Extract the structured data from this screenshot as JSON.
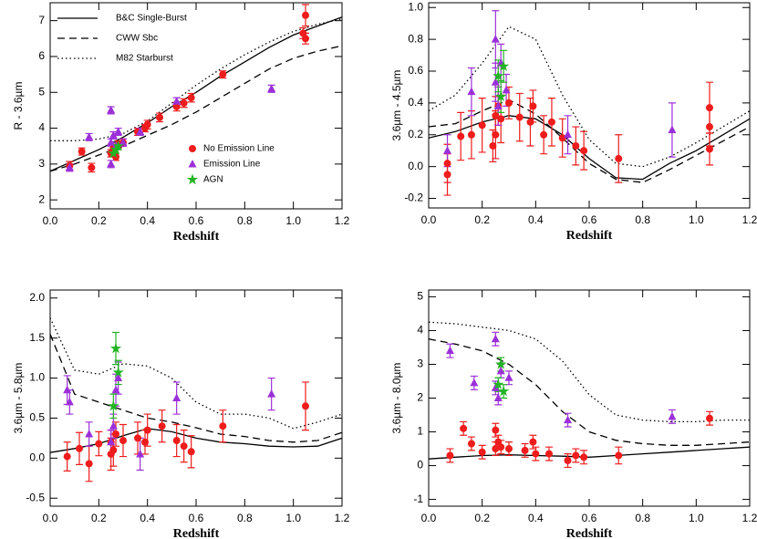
{
  "chart_data": [
    {
      "type": "scatter",
      "xlabel": "Redshift",
      "ylabel": "R - 3.6µm",
      "xlim": [
        0,
        1.2
      ],
      "ylim": [
        1.75,
        7.5
      ],
      "xticks": [
        {
          "value": 0,
          "label": "0.0"
        },
        0.2,
        0.4,
        0.6,
        0.8,
        {
          "value": 1,
          "label": "1.0"
        },
        1.2
      ],
      "yticks": [
        2,
        3,
        4,
        5,
        6,
        7
      ],
      "lines": [
        {
          "name": "B&C Single-Burst",
          "style": "solid",
          "color": "#000000",
          "x": [
            0,
            0.1,
            0.2,
            0.3,
            0.4,
            0.5,
            0.6,
            0.7,
            0.8,
            0.9,
            1,
            1.1,
            1.2
          ],
          "values": [
            2.8,
            3.1,
            3.4,
            3.75,
            4.15,
            4.6,
            5.0,
            5.45,
            5.85,
            6.25,
            6.6,
            6.85,
            7.1
          ]
        },
        {
          "name": "CWW Sbc",
          "style": "dashed",
          "color": "#000000",
          "x": [
            0,
            0.1,
            0.2,
            0.3,
            0.4,
            0.5,
            0.6,
            0.7,
            0.8,
            0.9,
            1,
            1.1,
            1.2
          ],
          "values": [
            2.8,
            3.0,
            3.25,
            3.5,
            3.8,
            4.1,
            4.45,
            4.85,
            5.25,
            5.65,
            5.95,
            6.15,
            6.3
          ]
        },
        {
          "name": "M82 Starburst",
          "style": "dotted",
          "color": "#000000",
          "x": [
            0,
            0.1,
            0.2,
            0.3,
            0.4,
            0.5,
            0.6,
            0.7,
            0.8,
            0.9,
            1,
            1.1,
            1.2
          ],
          "values": [
            3.65,
            3.65,
            3.7,
            3.85,
            4.2,
            4.7,
            5.2,
            5.65,
            6.05,
            6.4,
            6.7,
            6.9,
            7.05
          ]
        }
      ],
      "series": [
        {
          "name": "No Emission Line",
          "marker": "circle",
          "color": "#ee1c1c",
          "x": [
            0.08,
            0.13,
            0.17,
            0.25,
            0.26,
            0.27,
            0.28,
            0.3,
            0.36,
            0.39,
            0.4,
            0.45,
            0.52,
            0.55,
            0.58,
            0.71,
            1.04,
            1.05,
            1.05
          ],
          "values": [
            2.95,
            3.35,
            2.9,
            3.3,
            3.45,
            3.2,
            3.55,
            3.6,
            3.9,
            4.0,
            4.1,
            4.3,
            4.6,
            4.7,
            4.85,
            5.5,
            6.65,
            6.5,
            7.15
          ],
          "errors": [
            0.12,
            0.1,
            0.12,
            0.1,
            0.1,
            0.1,
            0.1,
            0.1,
            0.1,
            0.1,
            0.12,
            0.12,
            0.12,
            0.12,
            0.12,
            0.1,
            0.15,
            0.15,
            0.3
          ]
        },
        {
          "name": "Emission Line",
          "marker": "triangle",
          "color": "#9b30d8",
          "x": [
            0.08,
            0.16,
            0.25,
            0.25,
            0.25,
            0.26,
            0.27,
            0.28,
            0.3,
            0.37,
            0.52,
            0.91
          ],
          "values": [
            2.9,
            3.75,
            4.5,
            3.0,
            3.6,
            3.8,
            3.5,
            3.9,
            3.6,
            3.9,
            4.75,
            5.1
          ],
          "errors": [
            0.1,
            0.1,
            0.1,
            0.1,
            0.1,
            0.1,
            0.1,
            0.1,
            0.1,
            0.1,
            0.1,
            0.1
          ]
        },
        {
          "name": "AGN",
          "marker": "star",
          "color": "#22b422",
          "x": [
            0.26,
            0.27,
            0.28
          ],
          "values": [
            3.3,
            3.4,
            3.5
          ],
          "errors": [
            0.1,
            0.1,
            0.1
          ]
        }
      ]
    },
    {
      "type": "scatter",
      "xlabel": "Redshift",
      "ylabel": "3.6µm - 4.5µm",
      "xlim": [
        0,
        1.2
      ],
      "ylim": [
        -0.26,
        1.03
      ],
      "xticks": [
        {
          "value": 0,
          "label": "0.0"
        },
        0.2,
        0.4,
        0.6,
        0.8,
        {
          "value": 1,
          "label": "1.0"
        },
        1.2
      ],
      "yticks": [
        -0.2,
        {
          "value": 0,
          "label": "0.0"
        },
        0.2,
        0.4,
        0.6,
        0.8,
        {
          "value": 1,
          "label": "1.0"
        }
      ],
      "lines": [
        {
          "style": "solid",
          "color": "#000000",
          "x": [
            0,
            0.1,
            0.2,
            0.3,
            0.4,
            0.5,
            0.6,
            0.7,
            0.8,
            0.9,
            1,
            1.1,
            1.2
          ],
          "values": [
            0.18,
            0.22,
            0.28,
            0.32,
            0.3,
            0.2,
            0.05,
            -0.07,
            -0.08,
            0.02,
            0.1,
            0.2,
            0.3
          ]
        },
        {
          "style": "dashed",
          "color": "#000000",
          "x": [
            0,
            0.1,
            0.2,
            0.3,
            0.4,
            0.5,
            0.6,
            0.7,
            0.8,
            0.9,
            1,
            1.1,
            1.2
          ],
          "values": [
            0.25,
            0.27,
            0.35,
            0.42,
            0.33,
            0.18,
            0.02,
            -0.08,
            -0.1,
            -0.02,
            0.07,
            0.16,
            0.25
          ]
        },
        {
          "style": "dotted",
          "color": "#000000",
          "x": [
            0,
            0.1,
            0.2,
            0.3,
            0.4,
            0.5,
            0.6,
            0.7,
            0.8,
            0.9,
            1,
            1.1,
            1.2
          ],
          "values": [
            0.35,
            0.45,
            0.65,
            0.88,
            0.8,
            0.45,
            0.17,
            0.02,
            0.0,
            0.06,
            0.15,
            0.25,
            0.35
          ]
        }
      ],
      "series": [
        {
          "marker": "circle",
          "color": "#ee1c1c",
          "x": [
            0.07,
            0.07,
            0.12,
            0.16,
            0.2,
            0.24,
            0.25,
            0.25,
            0.26,
            0.27,
            0.3,
            0.34,
            0.38,
            0.39,
            0.43,
            0.46,
            0.5,
            0.55,
            0.58,
            0.71,
            1.05,
            1.05,
            1.05
          ],
          "values": [
            -0.05,
            0.02,
            0.19,
            0.2,
            0.26,
            0.13,
            0.2,
            0.32,
            0.38,
            0.3,
            0.4,
            0.31,
            0.28,
            0.38,
            0.2,
            0.28,
            0.18,
            0.13,
            0.1,
            0.05,
            0.37,
            0.25,
            0.11
          ],
          "errors": [
            0.13,
            0.12,
            0.15,
            0.15,
            0.17,
            0.1,
            0.15,
            0.12,
            0.12,
            0.15,
            0.1,
            0.15,
            0.15,
            0.1,
            0.12,
            0.15,
            0.12,
            0.12,
            0.12,
            0.15,
            0.16,
            0.12,
            0.1
          ]
        },
        {
          "marker": "triangle",
          "color": "#9b30d8",
          "x": [
            0.07,
            0.16,
            0.25,
            0.25,
            0.26,
            0.27,
            0.29,
            0.52,
            0.91
          ],
          "values": [
            0.1,
            0.47,
            0.8,
            0.53,
            0.38,
            0.65,
            0.48,
            0.2,
            0.23
          ],
          "errors": [
            0.1,
            0.15,
            0.18,
            0.12,
            0.12,
            0.12,
            0.1,
            0.12,
            0.17
          ]
        },
        {
          "marker": "star",
          "color": "#22b422",
          "x": [
            0.26,
            0.27,
            0.28
          ],
          "values": [
            0.57,
            0.44,
            0.63
          ],
          "errors": [
            0.1,
            0.1,
            0.1
          ]
        }
      ]
    },
    {
      "type": "scatter",
      "xlabel": "Redshift",
      "ylabel": "3.6µm - 5.8µm",
      "xlim": [
        0,
        1.2
      ],
      "ylim": [
        -0.6,
        2.1
      ],
      "xticks": [
        {
          "value": 0,
          "label": "0.0"
        },
        0.2,
        0.4,
        0.6,
        0.8,
        {
          "value": 1,
          "label": "1.0"
        },
        1.2
      ],
      "yticks": [
        -0.5,
        {
          "value": 0,
          "label": "0.0"
        },
        0.5,
        {
          "value": 1,
          "label": "1.0"
        },
        1.5,
        {
          "value": 2,
          "label": "2.0"
        }
      ],
      "lines": [
        {
          "style": "solid",
          "color": "#000000",
          "x": [
            0,
            0.1,
            0.2,
            0.3,
            0.4,
            0.5,
            0.6,
            0.7,
            0.8,
            0.9,
            1,
            1.1,
            1.2
          ],
          "values": [
            0.07,
            0.12,
            0.18,
            0.28,
            0.37,
            0.33,
            0.25,
            0.2,
            0.18,
            0.15,
            0.14,
            0.15,
            0.25
          ]
        },
        {
          "style": "dashed",
          "color": "#000000",
          "x": [
            0,
            0.1,
            0.2,
            0.3,
            0.4,
            0.5,
            0.6,
            0.7,
            0.8,
            0.9,
            1,
            1.1,
            1.2
          ],
          "values": [
            1.55,
            0.8,
            0.7,
            0.6,
            0.5,
            0.45,
            0.38,
            0.3,
            0.27,
            0.22,
            0.2,
            0.22,
            0.32
          ]
        },
        {
          "style": "dotted",
          "color": "#000000",
          "x": [
            0,
            0.1,
            0.2,
            0.3,
            0.4,
            0.5,
            0.6,
            0.7,
            0.8,
            0.9,
            1,
            1.1,
            1.2
          ],
          "values": [
            1.75,
            1.1,
            1.05,
            1.18,
            1.15,
            1.0,
            0.7,
            0.55,
            0.55,
            0.5,
            0.37,
            0.45,
            0.55
          ]
        }
      ],
      "series": [
        {
          "marker": "circle",
          "color": "#ee1c1c",
          "x": [
            0.07,
            0.12,
            0.16,
            0.2,
            0.25,
            0.25,
            0.26,
            0.27,
            0.3,
            0.36,
            0.39,
            0.4,
            0.46,
            0.52,
            0.55,
            0.58,
            0.71,
            1.05
          ],
          "values": [
            0.02,
            0.12,
            -0.07,
            0.18,
            0.05,
            0.2,
            0.1,
            0.3,
            0.22,
            0.25,
            0.2,
            0.35,
            0.4,
            0.22,
            0.15,
            0.08,
            0.4,
            0.65
          ],
          "errors": [
            0.18,
            0.2,
            0.22,
            0.15,
            0.2,
            0.15,
            0.2,
            0.15,
            0.2,
            0.2,
            0.15,
            0.2,
            0.2,
            0.2,
            0.2,
            0.2,
            0.2,
            0.3
          ]
        },
        {
          "marker": "triangle",
          "color": "#9b30d8",
          "x": [
            0.07,
            0.08,
            0.16,
            0.25,
            0.26,
            0.27,
            0.28,
            0.37,
            0.52,
            0.91
          ],
          "values": [
            0.85,
            0.7,
            0.3,
            0.2,
            0.4,
            0.85,
            1.0,
            0.05,
            0.75,
            0.8
          ],
          "errors": [
            0.18,
            0.15,
            0.15,
            0.15,
            0.15,
            0.2,
            0.2,
            0.2,
            0.2,
            0.2
          ]
        },
        {
          "marker": "star",
          "color": "#22b422",
          "x": [
            0.27,
            0.28,
            0.26
          ],
          "values": [
            1.37,
            1.07,
            0.65
          ],
          "errors": [
            0.2,
            0.15,
            0.15
          ]
        }
      ]
    },
    {
      "type": "scatter",
      "xlabel": "Redshift",
      "ylabel": "3.6µm - 8.0µm",
      "xlim": [
        0,
        1.2
      ],
      "ylim": [
        -1.2,
        5.2
      ],
      "xticks": [
        {
          "value": 0,
          "label": "0.0"
        },
        0.2,
        0.4,
        0.6,
        0.8,
        {
          "value": 1,
          "label": "1.0"
        },
        1.2
      ],
      "yticks": [
        -1,
        0,
        1,
        2,
        3,
        4,
        5
      ],
      "lines": [
        {
          "style": "solid",
          "color": "#000000",
          "x": [
            0,
            0.1,
            0.2,
            0.3,
            0.4,
            0.5,
            0.6,
            0.7,
            0.8,
            0.9,
            1,
            1.1,
            1.2
          ],
          "values": [
            0.2,
            0.25,
            0.3,
            0.32,
            0.3,
            0.28,
            0.25,
            0.3,
            0.35,
            0.4,
            0.45,
            0.5,
            0.55
          ]
        },
        {
          "style": "dashed",
          "color": "#000000",
          "x": [
            0,
            0.1,
            0.2,
            0.3,
            0.4,
            0.5,
            0.6,
            0.7,
            0.8,
            0.9,
            1,
            1.1,
            1.2
          ],
          "values": [
            3.75,
            3.6,
            3.4,
            3.0,
            2.4,
            1.6,
            1.0,
            0.75,
            0.65,
            0.6,
            0.6,
            0.65,
            0.7
          ]
        },
        {
          "style": "dotted",
          "color": "#000000",
          "x": [
            0,
            0.1,
            0.2,
            0.3,
            0.4,
            0.5,
            0.6,
            0.7,
            0.8,
            0.9,
            1,
            1.1,
            1.2
          ],
          "values": [
            4.25,
            4.2,
            4.1,
            4.0,
            3.75,
            3.1,
            2.1,
            1.5,
            1.35,
            1.3,
            1.3,
            1.35,
            1.35
          ]
        }
      ],
      "series": [
        {
          "marker": "circle",
          "color": "#ee1c1c",
          "x": [
            0.08,
            0.13,
            0.16,
            0.2,
            0.25,
            0.25,
            0.26,
            0.27,
            0.3,
            0.36,
            0.39,
            0.4,
            0.45,
            0.52,
            0.55,
            0.58,
            0.71,
            1.05
          ],
          "values": [
            0.3,
            1.1,
            0.65,
            0.4,
            0.5,
            1.05,
            0.7,
            0.55,
            0.5,
            0.45,
            0.7,
            0.35,
            0.35,
            0.15,
            0.3,
            0.25,
            0.3,
            1.4
          ],
          "errors": [
            0.2,
            0.2,
            0.2,
            0.2,
            0.2,
            0.2,
            0.2,
            0.2,
            0.2,
            0.2,
            0.2,
            0.2,
            0.2,
            0.2,
            0.2,
            0.2,
            0.25,
            0.2
          ]
        },
        {
          "marker": "triangle",
          "color": "#9b30d8",
          "x": [
            0.08,
            0.17,
            0.25,
            0.25,
            0.26,
            0.27,
            0.3,
            0.52,
            0.91
          ],
          "values": [
            3.4,
            2.45,
            3.75,
            2.3,
            2.0,
            2.8,
            2.6,
            1.35,
            1.45
          ],
          "errors": [
            0.2,
            0.2,
            0.2,
            0.2,
            0.2,
            0.2,
            0.2,
            0.2,
            0.2
          ]
        },
        {
          "marker": "star",
          "color": "#22b422",
          "x": [
            0.27,
            0.26,
            0.28
          ],
          "values": [
            3.0,
            2.4,
            2.2
          ],
          "errors": [
            0.2,
            0.2,
            0.2
          ]
        }
      ]
    }
  ]
}
